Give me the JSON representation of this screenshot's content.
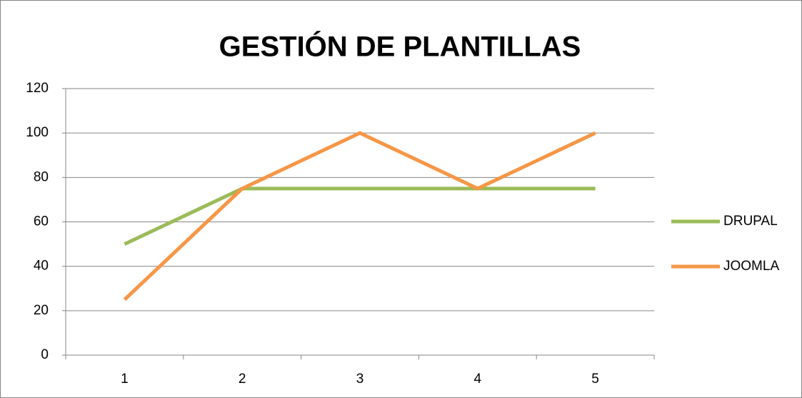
{
  "chart_data": {
    "type": "line",
    "title": "GESTIÓN DE PLANTILLAS",
    "categories": [
      "1",
      "2",
      "3",
      "4",
      "5"
    ],
    "series": [
      {
        "name": "DRUPAL",
        "color": "#9bbb59",
        "values": [
          50,
          75,
          75,
          75,
          75
        ]
      },
      {
        "name": "JOOMLA",
        "color": "#f79646",
        "values": [
          25,
          75,
          100,
          75,
          100
        ]
      }
    ],
    "ylim": [
      0,
      120
    ],
    "yticks": [
      0,
      20,
      40,
      60,
      80,
      100,
      120
    ],
    "grid": true,
    "legend": "right"
  }
}
